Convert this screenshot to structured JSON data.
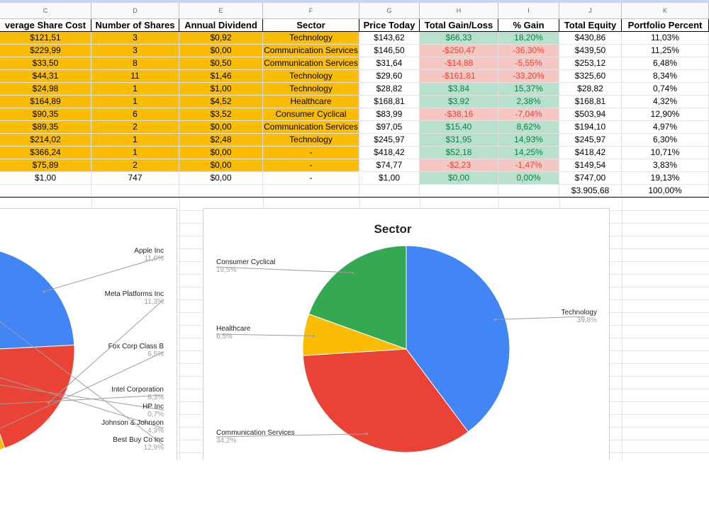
{
  "columns": [
    "C",
    "D",
    "E",
    "F",
    "G",
    "H",
    "I",
    "J",
    "K"
  ],
  "headers": [
    "verage Share Cost",
    "Number of Shares",
    "Annual Dividend",
    "Sector",
    "Price Today",
    "Total Gain/Loss",
    "% Gain",
    "Total Equity",
    "Portfolio Percent"
  ],
  "rows": [
    {
      "cost": "$121,51",
      "shares": "3",
      "dividend": "$0,92",
      "sector": "Technology",
      "price": "$143,62",
      "gain": "$66,33",
      "pct": "18,20%",
      "equity": "$430,86",
      "portfolio": "11,03%",
      "trend": "up"
    },
    {
      "cost": "$229,99",
      "shares": "3",
      "dividend": "$0,00",
      "sector": "Communication Services",
      "price": "$146,50",
      "gain": "-$250,47",
      "pct": "-36,30%",
      "equity": "$439,50",
      "portfolio": "11,25%",
      "trend": "down"
    },
    {
      "cost": "$33,50",
      "shares": "8",
      "dividend": "$0,50",
      "sector": "Communication Services",
      "price": "$31,64",
      "gain": "-$14,88",
      "pct": "-5,55%",
      "equity": "$253,12",
      "portfolio": "6,48%",
      "trend": "down"
    },
    {
      "cost": "$44,31",
      "shares": "11",
      "dividend": "$1,46",
      "sector": "Technology",
      "price": "$29,60",
      "gain": "-$161,81",
      "pct": "-33,20%",
      "equity": "$325,60",
      "portfolio": "8,34%",
      "trend": "down"
    },
    {
      "cost": "$24,98",
      "shares": "1",
      "dividend": "$1,00",
      "sector": "Technology",
      "price": "$28,82",
      "gain": "$3,84",
      "pct": "15,37%",
      "equity": "$28,82",
      "portfolio": "0,74%",
      "trend": "up"
    },
    {
      "cost": "$164,89",
      "shares": "1",
      "dividend": "$4,52",
      "sector": "Healthcare",
      "price": "$168,81",
      "gain": "$3,92",
      "pct": "2,38%",
      "equity": "$168,81",
      "portfolio": "4,32%",
      "trend": "up"
    },
    {
      "cost": "$90,35",
      "shares": "6",
      "dividend": "$3,52",
      "sector": "Consumer Cyclical",
      "price": "$83,99",
      "gain": "-$38,16",
      "pct": "-7,04%",
      "equity": "$503,94",
      "portfolio": "12,90%",
      "trend": "down"
    },
    {
      "cost": "$89,35",
      "shares": "2",
      "dividend": "$0,00",
      "sector": "Communication Services",
      "price": "$97,05",
      "gain": "$15,40",
      "pct": "8,62%",
      "equity": "$194,10",
      "portfolio": "4,97%",
      "trend": "up"
    },
    {
      "cost": "$214,02",
      "shares": "1",
      "dividend": "$2,48",
      "sector": "Technology",
      "price": "$245,97",
      "gain": "$31,95",
      "pct": "14,93%",
      "equity": "$245,97",
      "portfolio": "6,30%",
      "trend": "up"
    },
    {
      "cost": "$366,24",
      "shares": "1",
      "dividend": "$0,00",
      "sector": "-",
      "price": "$418,42",
      "gain": "$52,18",
      "pct": "14,25%",
      "equity": "$418,42",
      "portfolio": "10,71%",
      "trend": "up"
    },
    {
      "cost": "$75,89",
      "shares": "2",
      "dividend": "$0,00",
      "sector": "-",
      "price": "$74,77",
      "gain": "-$2,23",
      "pct": "-1,47%",
      "equity": "$149,54",
      "portfolio": "3,83%",
      "trend": "down"
    },
    {
      "cost": "$1,00",
      "shares": "747",
      "dividend": "$0,00",
      "sector": "-",
      "price": "$1,00",
      "gain": "$0,00",
      "pct": "0,00%",
      "equity": "$747,00",
      "portfolio": "19,13%",
      "trend": "zero"
    }
  ],
  "totals": {
    "equity": "$3.905,68",
    "portfolio": "100,00%"
  },
  "chart_data": [
    {
      "type": "pie",
      "title": "",
      "labels": [
        "Apple Inc",
        "Meta Platforms Inc",
        "Fox Corp Class B",
        "Intel Corporation",
        "HP Inc",
        "Johnson & Johnson",
        "Best Buy Co Inc"
      ],
      "values": [
        11.0,
        11.3,
        6.5,
        8.3,
        0.7,
        4.3,
        12.9
      ],
      "value_labels": [
        "11,0%",
        "11,3%",
        "6,5%",
        "8,3%",
        "0,7%",
        "4,3%",
        "12,9%"
      ],
      "colors": [
        "#4285f4",
        "#ea4335",
        "#fbbc04",
        "#34a853",
        "#ff6d01",
        "#46bdc6",
        "#7baaf7"
      ]
    },
    {
      "type": "pie",
      "title": "Sector",
      "labels": [
        "Technology",
        "Communication Services",
        "Healthcare",
        "Consumer Cyclical"
      ],
      "values": [
        39.8,
        34.2,
        6.5,
        19.5
      ],
      "value_labels": [
        "39,8%",
        "34,2%",
        "6,5%",
        "19,5%"
      ],
      "colors": [
        "#4285f4",
        "#ea4335",
        "#fbbc04",
        "#34a853"
      ]
    }
  ]
}
